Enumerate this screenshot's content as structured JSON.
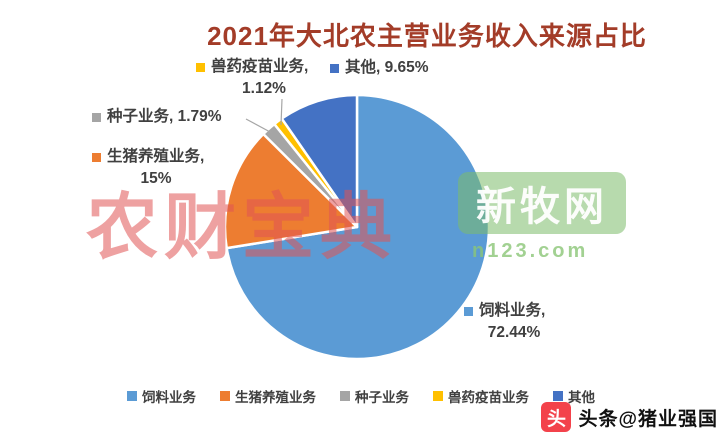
{
  "title": "2021年大北农主营业务收入来源占比",
  "chart_data": {
    "type": "pie",
    "title": "2021年大北农主营业务收入来源占比",
    "categories": [
      "饲料业务",
      "生猪养殖业务",
      "种子业务",
      "兽药疫苗业务",
      "其他"
    ],
    "values": [
      72.44,
      15,
      1.79,
      1.12,
      9.65
    ],
    "unit": "%",
    "colors": [
      "#5B9BD5",
      "#ED7D31",
      "#A5A5A5",
      "#FFC000",
      "#4472C4"
    ],
    "slice_labels": [
      "饲料业务, 72.44%",
      "生猪养殖业务, 15%",
      "种子业务, 1.79%",
      "兽药疫苗业务, 1.12%",
      "其他, 9.65%"
    ],
    "legend_position": "bottom",
    "start_angle_deg": 0,
    "direction": "clockwise"
  },
  "labels": {
    "feed": {
      "line1": "饲料业务,",
      "line2": "72.44%"
    },
    "pig": {
      "line1": "生猪养殖业务,",
      "line2": "15%"
    },
    "seed": {
      "text": "种子业务, 1.79%"
    },
    "vet": {
      "line1": "兽药疫苗业务,",
      "line2": "1.12%"
    },
    "other": {
      "text": "其他, 9.65%"
    }
  },
  "legend": {
    "items": [
      {
        "label": "饲料业务",
        "color": "#5B9BD5"
      },
      {
        "label": "生猪养殖业务",
        "color": "#ED7D31"
      },
      {
        "label": "种子业务",
        "color": "#A5A5A5"
      },
      {
        "label": "兽药疫苗业务",
        "color": "#FFC000"
      },
      {
        "label": "其他",
        "color": "#4472C4"
      }
    ]
  },
  "watermarks": {
    "left_text": "农财宝典",
    "right_text": "新牧网",
    "right_subtext": "n123.com"
  },
  "badge": {
    "logo_glyph": "头",
    "text": "头条@猪业强国"
  },
  "colors": {
    "title": "#A33C28",
    "label_text": "#404040",
    "leader_line": "#A6A6A6",
    "badge_red": "#F3424B",
    "badge_text": "#111111",
    "background": "#FFFFFF"
  }
}
